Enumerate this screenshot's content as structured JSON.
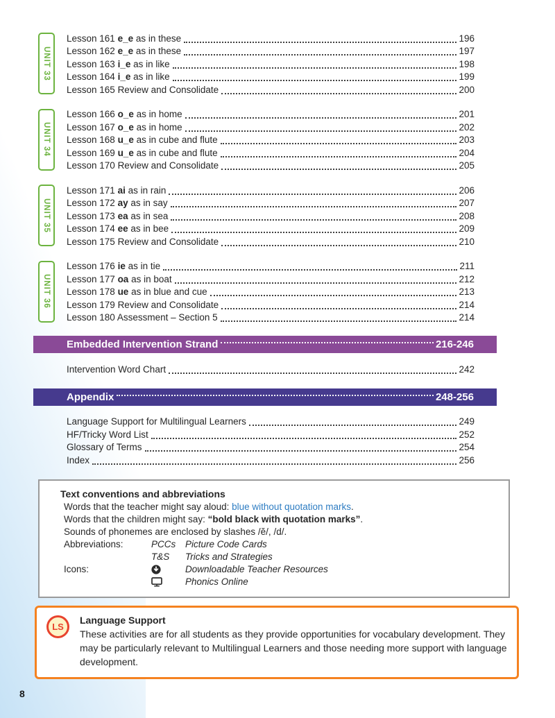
{
  "page": {
    "number": "8"
  },
  "colors": {
    "unit_green": "#6cb33f",
    "intervention_purple": "#8a4a97",
    "appendix_indigo": "#463a8e",
    "teacher_blue": "#2d7cc2",
    "language_support_orange": "#f58220",
    "ls_badge_red": "#e8432d",
    "ls_badge_fill": "#fdf3c6",
    "conventions_border_gray": "#9a9a9a",
    "left_edge_blue": "#c6e2f6"
  },
  "toc": {
    "units": [
      {
        "label": "UNIT 33",
        "lessons": [
          {
            "prefix": "Lesson 161",
            "phoneme": "e_e",
            "suffix": "as in these",
            "page": "196"
          },
          {
            "prefix": "Lesson 162",
            "phoneme": "e_e",
            "suffix": "as in these",
            "page": "197"
          },
          {
            "prefix": "Lesson 163",
            "phoneme": "i_e",
            "suffix": "as in like",
            "page": "198"
          },
          {
            "prefix": "Lesson 164",
            "phoneme": "i_e",
            "suffix": "as in like",
            "page": "199"
          },
          {
            "prefix": "Lesson 165",
            "phoneme": "",
            "suffix": "Review and Consolidate",
            "page": "200"
          }
        ]
      },
      {
        "label": "UNIT 34",
        "lessons": [
          {
            "prefix": "Lesson 166",
            "phoneme": "o_e",
            "suffix": "as in home",
            "page": "201"
          },
          {
            "prefix": "Lesson 167",
            "phoneme": "o_e",
            "suffix": "as in home",
            "page": "202"
          },
          {
            "prefix": "Lesson 168",
            "phoneme": "u_e",
            "suffix": "as in cube and flute",
            "page": "203"
          },
          {
            "prefix": "Lesson 169",
            "phoneme": "u_e",
            "suffix": "as in cube and flute",
            "page": "204"
          },
          {
            "prefix": "Lesson 170",
            "phoneme": "",
            "suffix": "Review and Consolidate",
            "page": "205"
          }
        ]
      },
      {
        "label": "UNIT 35",
        "lessons": [
          {
            "prefix": "Lesson 171",
            "phoneme": "ai",
            "suffix": "as in rain",
            "page": "206"
          },
          {
            "prefix": "Lesson 172",
            "phoneme": "ay",
            "suffix": "as in say",
            "page": "207"
          },
          {
            "prefix": "Lesson 173",
            "phoneme": "ea",
            "suffix": "as in sea",
            "page": "208"
          },
          {
            "prefix": "Lesson 174",
            "phoneme": "ee",
            "suffix": "as in bee",
            "page": "209"
          },
          {
            "prefix": "Lesson 175",
            "phoneme": "",
            "suffix": "Review and Consolidate",
            "page": "210"
          }
        ]
      },
      {
        "label": "UNIT 36",
        "lessons": [
          {
            "prefix": "Lesson 176",
            "phoneme": "ie",
            "suffix": "as in tie",
            "page": "211"
          },
          {
            "prefix": "Lesson 177",
            "phoneme": "oa",
            "suffix": "as in boat",
            "page": "212"
          },
          {
            "prefix": "Lesson 178",
            "phoneme": "ue",
            "suffix": "as in blue and cue",
            "page": "213"
          },
          {
            "prefix": "Lesson 179",
            "phoneme": "",
            "suffix": "Review and Consolidate",
            "page": "214"
          },
          {
            "prefix": "Lesson 180",
            "phoneme": "",
            "suffix": "Assessment – Section 5",
            "page": "214"
          }
        ]
      }
    ],
    "sections": [
      {
        "title": "Embedded Intervention Strand",
        "pages": "216-246",
        "color": "#8a4a97",
        "entries": [
          {
            "label": "Intervention Word Chart",
            "page": "242"
          }
        ]
      },
      {
        "title": "Appendix",
        "pages": "248-256",
        "color": "#463a8e",
        "entries": [
          {
            "label": "Language Support for Multilingual Learners",
            "page": "249"
          },
          {
            "label": "HF/Tricky Word List",
            "page": "252"
          },
          {
            "label": "Glossary of Terms",
            "page": "254"
          },
          {
            "label": "Index",
            "page": "256"
          }
        ]
      }
    ]
  },
  "conventions": {
    "title": "Text conventions and abbreviations",
    "line1_prefix": "Words that the teacher might say aloud: ",
    "line1_blue": "blue without quotation marks",
    "line1_end": ".",
    "line2_prefix": "Words that the children might say: ",
    "line2_bold": "“bold black with quotation marks”",
    "line2_end": ".",
    "line3": "Sounds of phonemes are enclosed by slashes /ĕ/, /d/.",
    "abbr_label": "Abbreviations:",
    "abbreviations": [
      {
        "term": "PCCs",
        "meaning": "Picture Code Cards"
      },
      {
        "term": "T&S",
        "meaning": "Tricks and Strategies"
      }
    ],
    "icons_label": "Icons:",
    "icons": [
      {
        "icon": "download-icon",
        "meaning": "Downloadable Teacher Resources"
      },
      {
        "icon": "monitor-icon",
        "meaning": "Phonics Online"
      }
    ]
  },
  "language_support": {
    "badge": "LS",
    "title": "Language Support",
    "body": "These activities are for all students as they provide opportunities for vocabulary development. They may be particularly relevant to Multilingual Learners and those needing more support with language development."
  }
}
